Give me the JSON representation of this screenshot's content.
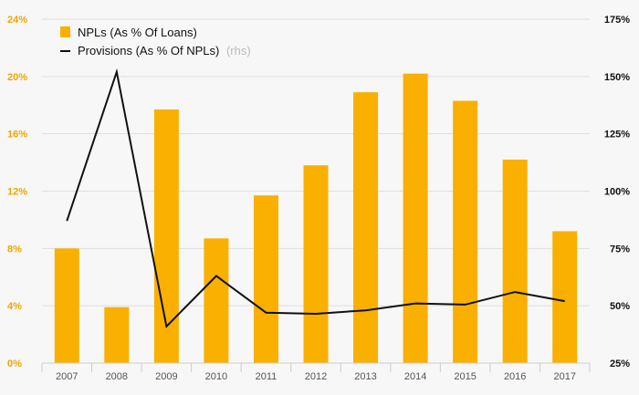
{
  "chart_data": {
    "type": "bar+line",
    "categories": [
      "2007",
      "2008",
      "2009",
      "2010",
      "2011",
      "2012",
      "2013",
      "2014",
      "2015",
      "2016",
      "2017"
    ],
    "series": [
      {
        "name": "NPLs (As % Of Loans)",
        "type": "bar",
        "axis": "left",
        "color": "#f9b000",
        "values": [
          8.0,
          3.9,
          17.7,
          8.7,
          11.7,
          13.8,
          18.9,
          20.2,
          18.3,
          14.2,
          9.2
        ]
      },
      {
        "name": "Provisions (As % Of NPLs)",
        "name_suffix": "(rhs)",
        "type": "line",
        "axis": "right",
        "color": "#111111",
        "values": [
          87,
          152,
          41,
          63,
          47,
          46.5,
          48,
          51,
          50.5,
          56,
          52
        ]
      }
    ],
    "left_axis": {
      "min": 0,
      "max": 24,
      "ticks": [
        "0%",
        "4%",
        "8%",
        "12%",
        "16%",
        "20%",
        "24%"
      ],
      "color": "#f0a500"
    },
    "right_axis": {
      "min": 25,
      "max": 175,
      "ticks": [
        "25%",
        "50%",
        "75%",
        "100%",
        "125%",
        "150%",
        "175%"
      ],
      "color": "#111111"
    },
    "grid": true,
    "legend_position": "top-left"
  }
}
